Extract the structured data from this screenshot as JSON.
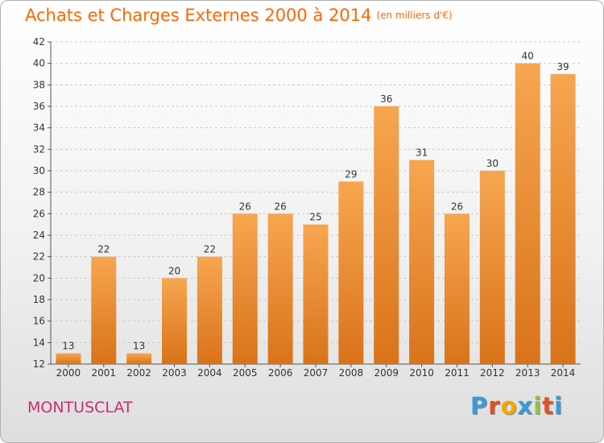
{
  "header": {
    "title": "Achats et Charges Externes 2000 à 2014",
    "unit": "(en milliers d'€)"
  },
  "footer": {
    "place": "MONTUSCLAT",
    "logo_letters": [
      "P",
      "r",
      "o",
      "x",
      "i",
      "t",
      "i"
    ],
    "logo_colors": [
      "#3a9ad9",
      "#e84e1b",
      "#f6a800",
      "#3a9ad9",
      "#8cc63f",
      "#e84e1b",
      "#3a9ad9"
    ]
  },
  "colors": {
    "bar_top": "#f7a650",
    "bar_bottom": "#d9731a",
    "title": "#ff6600",
    "place": "#cc2d70"
  },
  "chart_data": {
    "type": "bar",
    "title": "Achats et Charges Externes 2000 à 2014",
    "subtitle": "(en milliers d'€)",
    "categories": [
      "2000",
      "2001",
      "2002",
      "2003",
      "2004",
      "2005",
      "2006",
      "2007",
      "2008",
      "2009",
      "2010",
      "2011",
      "2012",
      "2013",
      "2014"
    ],
    "values": [
      13,
      22,
      13,
      20,
      22,
      26,
      26,
      25,
      29,
      36,
      31,
      26,
      30,
      40,
      39
    ],
    "ylim": [
      12,
      42
    ],
    "yticks": [
      12,
      14,
      16,
      18,
      20,
      22,
      24,
      26,
      28,
      30,
      32,
      34,
      36,
      38,
      40,
      42
    ],
    "grid": "horizontal dashed",
    "xlabel": "",
    "ylabel": ""
  }
}
